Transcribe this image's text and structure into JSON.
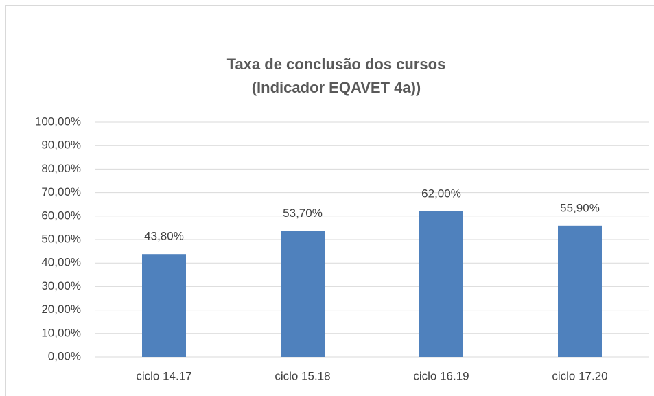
{
  "chart_data": {
    "type": "bar",
    "title": [
      "Taxa de conclusão dos cursos",
      "(Indicador  EQAVET 4a))"
    ],
    "categories": [
      "ciclo 14.17",
      "ciclo 15.18",
      "ciclo 16.19",
      "ciclo 17.20"
    ],
    "values": [
      43.8,
      53.7,
      62.0,
      55.9
    ],
    "value_labels": [
      "43,80%",
      "53,70%",
      "62,00%",
      "55,90%"
    ],
    "color": "#4f81bd",
    "ylim": [
      0,
      100
    ],
    "yticks": [
      {
        "value": 0,
        "label": "0,00%"
      },
      {
        "value": 10,
        "label": "10,00%"
      },
      {
        "value": 20,
        "label": "20,00%"
      },
      {
        "value": 30,
        "label": "30,00%"
      },
      {
        "value": 40,
        "label": "40,00%"
      },
      {
        "value": 50,
        "label": "50,00%"
      },
      {
        "value": 60,
        "label": "60,00%"
      },
      {
        "value": 70,
        "label": "70,00%"
      },
      {
        "value": 80,
        "label": "80,00%"
      },
      {
        "value": 90,
        "label": "90,00%"
      },
      {
        "value": 100,
        "label": "100,00%"
      }
    ],
    "grid": true
  }
}
